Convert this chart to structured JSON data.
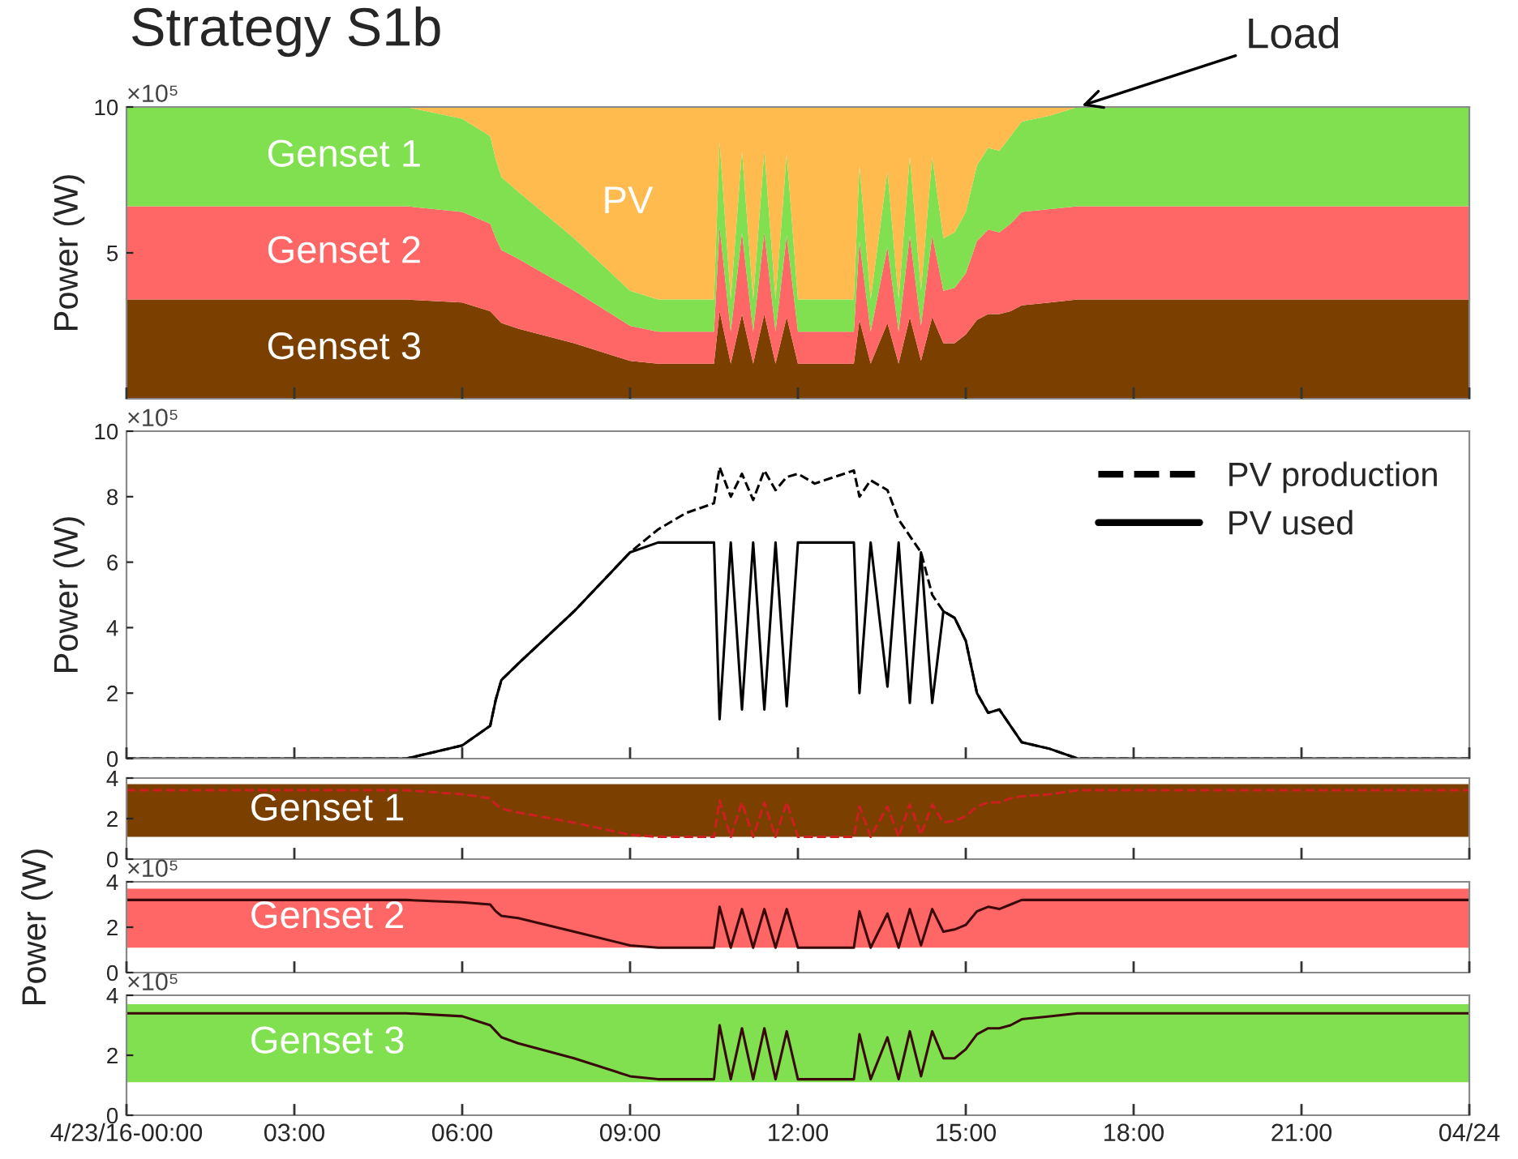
{
  "chart_data": [
    {
      "type": "area",
      "stacked": true,
      "title": "Strategy S1b",
      "ylabel": "Power (W)",
      "xlim": [
        0,
        24
      ],
      "xticks": [
        0,
        3,
        6,
        9,
        12,
        15,
        18,
        21,
        24
      ],
      "ylim": [
        0,
        10
      ],
      "yticks": [
        5,
        10
      ],
      "tick_labels": "y",
      "annotations": [
        "×10⁵",
        {
          "text": "Load",
          "x": 17,
          "y": 10
        }
      ],
      "x": [
        0,
        5,
        6,
        6.5,
        6.6,
        6.7,
        7,
        8,
        9,
        9.5,
        10,
        10.5,
        10.6,
        10.8,
        11,
        11.2,
        11.4,
        11.6,
        11.8,
        12,
        12.3,
        13,
        13.1,
        13.3,
        13.6,
        13.8,
        14,
        14.2,
        14.4,
        14.6,
        14.8,
        15,
        15.2,
        15.4,
        15.6,
        15.8,
        16,
        16.5,
        17,
        20,
        24
      ],
      "series": [
        {
          "name": "Genset 3",
          "color": "#7b3f00",
          "values": [
            3.4,
            3.4,
            3.3,
            3.0,
            2.8,
            2.6,
            2.4,
            1.9,
            1.3,
            1.2,
            1.2,
            1.2,
            3.0,
            1.2,
            2.9,
            1.2,
            2.9,
            1.2,
            2.8,
            1.2,
            1.2,
            1.2,
            2.7,
            1.2,
            2.6,
            1.2,
            2.8,
            1.3,
            2.8,
            1.9,
            1.9,
            2.2,
            2.7,
            2.9,
            2.9,
            3.0,
            3.2,
            3.3,
            3.4,
            3.4,
            3.4
          ]
        },
        {
          "name": "Genset 2",
          "color": "#ff6666",
          "values": [
            3.2,
            3.2,
            3.1,
            3.0,
            2.7,
            2.5,
            2.4,
            1.8,
            1.2,
            1.1,
            1.1,
            1.1,
            2.9,
            1.1,
            2.8,
            1.1,
            2.8,
            1.1,
            2.8,
            1.1,
            1.1,
            1.1,
            2.7,
            1.1,
            2.6,
            1.1,
            2.8,
            1.2,
            2.8,
            1.8,
            1.9,
            2.1,
            2.7,
            2.9,
            2.8,
            3.0,
            3.2,
            3.2,
            3.2,
            3.2,
            3.2
          ]
        },
        {
          "name": "Genset 1",
          "color": "#80e050",
          "values": [
            3.4,
            3.4,
            3.2,
            3.0,
            2.7,
            2.5,
            2.3,
            1.8,
            1.2,
            1.1,
            1.1,
            1.1,
            2.9,
            1.1,
            2.8,
            1.1,
            2.8,
            1.1,
            2.8,
            1.1,
            1.1,
            1.1,
            2.6,
            1.1,
            2.6,
            1.1,
            2.7,
            1.2,
            2.7,
            1.8,
            1.9,
            2.1,
            2.6,
            2.8,
            2.8,
            3.0,
            3.1,
            3.2,
            3.4,
            3.4,
            3.4
          ]
        },
        {
          "name": "PV",
          "color": "#ffbb4d",
          "values": [
            0,
            0,
            0.4,
            1.0,
            1.8,
            2.4,
            2.9,
            4.5,
            6.3,
            6.6,
            6.6,
            6.6,
            1.2,
            6.6,
            1.5,
            6.6,
            1.5,
            6.6,
            1.6,
            6.6,
            6.6,
            6.6,
            2.0,
            6.6,
            2.2,
            6.6,
            1.7,
            6.3,
            1.7,
            4.5,
            4.3,
            3.6,
            2.0,
            1.4,
            1.5,
            1.0,
            0.5,
            0.3,
            0,
            0,
            0
          ]
        }
      ]
    },
    {
      "type": "line",
      "ylabel": "Power (W)",
      "xlim": [
        0,
        24
      ],
      "xticks": [
        0,
        3,
        6,
        9,
        12,
        15,
        18,
        21,
        24
      ],
      "ylim": [
        0,
        10
      ],
      "yticks": [
        0,
        2,
        4,
        6,
        8,
        10
      ],
      "tick_labels": "y",
      "legend": "top right",
      "annotations": [
        "×10⁵"
      ],
      "x": [
        0,
        5,
        6,
        6.5,
        6.6,
        6.7,
        7,
        8,
        9,
        9.5,
        10,
        10.5,
        10.6,
        10.8,
        11,
        11.2,
        11.4,
        11.6,
        11.8,
        12,
        12.3,
        13,
        13.1,
        13.3,
        13.6,
        13.8,
        14,
        14.2,
        14.4,
        14.6,
        14.8,
        15,
        15.2,
        15.4,
        15.6,
        15.8,
        16,
        16.5,
        17,
        20,
        24
      ],
      "series": [
        {
          "name": "PV production",
          "color": "#000000",
          "line_style": "dashed",
          "values": [
            0,
            0,
            0.4,
            1.0,
            1.8,
            2.4,
            2.9,
            4.5,
            6.3,
            7.0,
            7.5,
            7.8,
            8.9,
            8.0,
            8.7,
            7.9,
            8.8,
            8.2,
            8.6,
            8.7,
            8.4,
            8.8,
            8.0,
            8.5,
            8.2,
            7.3,
            6.8,
            6.3,
            5.0,
            4.5,
            4.3,
            3.6,
            2.0,
            1.4,
            1.5,
            1.0,
            0.5,
            0.3,
            0,
            0,
            0
          ]
        },
        {
          "name": "PV used",
          "color": "#000000",
          "line_style": "solid",
          "values": [
            0,
            0,
            0.4,
            1.0,
            1.8,
            2.4,
            2.9,
            4.5,
            6.3,
            6.6,
            6.6,
            6.6,
            1.2,
            6.6,
            1.5,
            6.6,
            1.5,
            6.6,
            1.6,
            6.6,
            6.6,
            6.6,
            2.0,
            6.6,
            2.2,
            6.6,
            1.7,
            6.3,
            1.7,
            4.5,
            4.3,
            3.6,
            2.0,
            1.4,
            1.5,
            1.0,
            0.5,
            0.3,
            0,
            0,
            0
          ]
        }
      ]
    },
    {
      "type": "line",
      "xlim": [
        0,
        24
      ],
      "xticks": [
        0,
        3,
        6,
        9,
        12,
        15,
        18,
        21,
        24
      ],
      "ylim": [
        0,
        4
      ],
      "yticks": [
        0,
        2,
        4
      ],
      "tick_labels": "y",
      "bands": [
        {
          "axis": "y",
          "from": 1.1,
          "to": 3.7,
          "label": "Genset 1",
          "color": "#7b3f00"
        }
      ],
      "x": [
        0,
        5,
        6,
        6.5,
        6.6,
        6.7,
        7,
        8,
        9,
        9.5,
        10,
        10.5,
        10.6,
        10.8,
        11,
        11.2,
        11.4,
        11.6,
        11.8,
        12,
        12.3,
        13,
        13.1,
        13.3,
        13.6,
        13.8,
        14,
        14.2,
        14.4,
        14.6,
        14.8,
        15,
        15.2,
        15.4,
        15.6,
        15.8,
        16,
        16.5,
        17,
        20,
        24
      ],
      "series": [
        {
          "color": "#cc2020",
          "line_style": "dashed",
          "values": [
            3.4,
            3.4,
            3.2,
            3.0,
            2.7,
            2.5,
            2.3,
            1.8,
            1.2,
            1.1,
            1.1,
            1.1,
            2.9,
            1.1,
            2.8,
            1.1,
            2.8,
            1.1,
            2.8,
            1.1,
            1.1,
            1.1,
            2.6,
            1.1,
            2.6,
            1.1,
            2.7,
            1.2,
            2.7,
            1.8,
            1.9,
            2.1,
            2.6,
            2.8,
            2.8,
            3.0,
            3.1,
            3.2,
            3.4,
            3.4,
            3.4
          ]
        }
      ]
    },
    {
      "type": "line",
      "ylabel": "Power (W)",
      "xlim": [
        0,
        24
      ],
      "xticks": [
        0,
        3,
        6,
        9,
        12,
        15,
        18,
        21,
        24
      ],
      "ylim": [
        0,
        4
      ],
      "yticks": [
        0,
        2,
        4
      ],
      "tick_labels": "y",
      "annotations": [
        "×10⁵"
      ],
      "bands": [
        {
          "axis": "y",
          "from": 1.1,
          "to": 3.7,
          "label": "Genset 2",
          "color": "#ff6666"
        }
      ],
      "x": [
        0,
        5,
        6,
        6.5,
        6.6,
        6.7,
        7,
        8,
        9,
        9.5,
        10,
        10.5,
        10.6,
        10.8,
        11,
        11.2,
        11.4,
        11.6,
        11.8,
        12,
        12.3,
        13,
        13.1,
        13.3,
        13.6,
        13.8,
        14,
        14.2,
        14.4,
        14.6,
        14.8,
        15,
        15.2,
        15.4,
        15.6,
        15.8,
        16,
        16.5,
        17,
        20,
        24
      ],
      "series": [
        {
          "color": "#3a0a0a",
          "line_style": "solid",
          "values": [
            3.2,
            3.2,
            3.1,
            3.0,
            2.7,
            2.5,
            2.4,
            1.8,
            1.2,
            1.1,
            1.1,
            1.1,
            2.9,
            1.1,
            2.8,
            1.1,
            2.8,
            1.1,
            2.8,
            1.1,
            1.1,
            1.1,
            2.7,
            1.1,
            2.6,
            1.1,
            2.8,
            1.2,
            2.8,
            1.8,
            1.9,
            2.1,
            2.7,
            2.9,
            2.8,
            3.0,
            3.2,
            3.2,
            3.2,
            3.2,
            3.2
          ]
        }
      ]
    },
    {
      "type": "line",
      "xlim": [
        0,
        24
      ],
      "xticks": [
        {
          "value": 0,
          "label": "4/23/16-00:00"
        },
        {
          "value": 3,
          "label": "03:00"
        },
        {
          "value": 6,
          "label": "06:00"
        },
        {
          "value": 9,
          "label": "09:00"
        },
        {
          "value": 12,
          "label": "12:00"
        },
        {
          "value": 15,
          "label": "15:00"
        },
        {
          "value": 18,
          "label": "18:00"
        },
        {
          "value": 21,
          "label": "21:00"
        },
        {
          "value": 24,
          "label": "04/24"
        }
      ],
      "ylim": [
        0,
        4
      ],
      "yticks": [
        0,
        2,
        4
      ],
      "annotations": [
        "×10⁵"
      ],
      "bands": [
        {
          "axis": "y",
          "from": 1.1,
          "to": 3.7,
          "label": "Genset 3",
          "color": "#80e050"
        }
      ],
      "x": [
        0,
        5,
        6,
        6.5,
        6.6,
        6.7,
        7,
        8,
        9,
        9.5,
        10,
        10.5,
        10.6,
        10.8,
        11,
        11.2,
        11.4,
        11.6,
        11.8,
        12,
        12.3,
        13,
        13.1,
        13.3,
        13.6,
        13.8,
        14,
        14.2,
        14.4,
        14.6,
        14.8,
        15,
        15.2,
        15.4,
        15.6,
        15.8,
        16,
        16.5,
        17,
        20,
        24
      ],
      "series": [
        {
          "color": "#3a0a0a",
          "line_style": "solid",
          "values": [
            3.4,
            3.4,
            3.3,
            3.0,
            2.8,
            2.6,
            2.4,
            1.9,
            1.3,
            1.2,
            1.2,
            1.2,
            3.0,
            1.2,
            2.9,
            1.2,
            2.9,
            1.2,
            2.8,
            1.2,
            1.2,
            1.2,
            2.7,
            1.2,
            2.6,
            1.2,
            2.8,
            1.3,
            2.8,
            1.9,
            1.9,
            2.2,
            2.7,
            2.9,
            2.9,
            3.0,
            3.2,
            3.3,
            3.4,
            3.4,
            3.4
          ]
        }
      ]
    }
  ]
}
